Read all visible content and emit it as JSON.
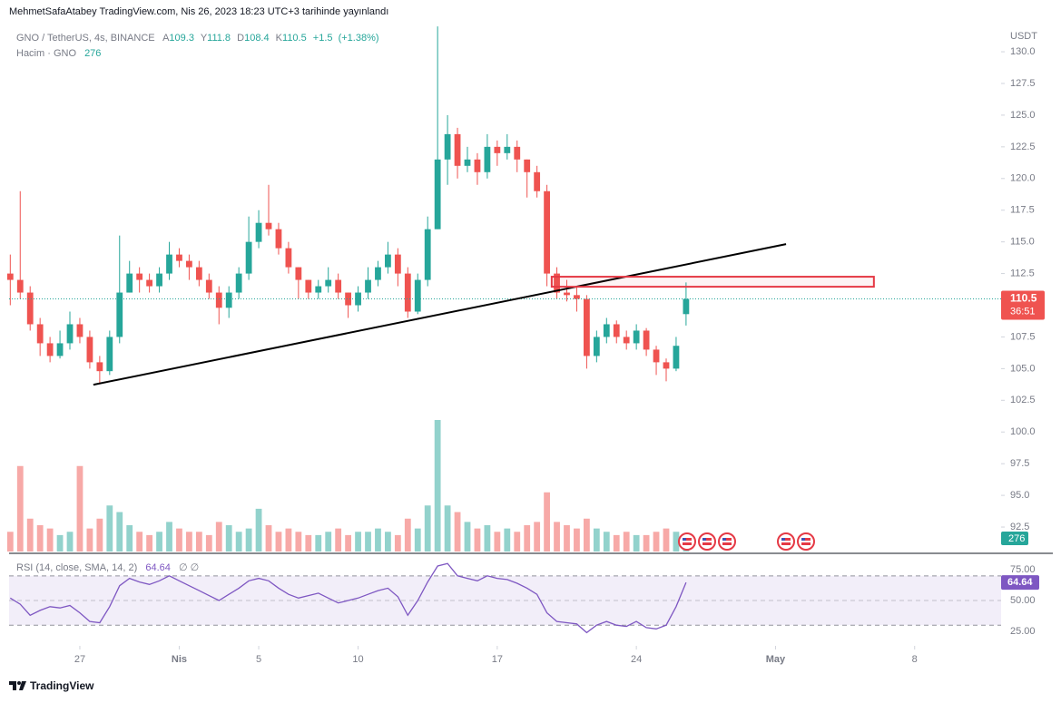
{
  "header": "MehmetSafaAtabey TradingView.com, Nis 26, 2023 18:23 UTC+3 tarihinde yayınlandı",
  "footer": "TradingView",
  "chart_data": {
    "type": "candlestick",
    "symbol": "GNO / TetherUS, 4s, BINANCE",
    "ohlc_keys": [
      "A",
      "Y",
      "D",
      "K"
    ],
    "change": {
      "value": 1.5,
      "label": "+1.5"
    },
    "change_pct": {
      "value": 1.38,
      "label": "(+1.38%)"
    },
    "currency": "USDT",
    "countdown": "36:51",
    "up_color": "#26a69a",
    "down_color": "#ef5350",
    "x": [
      23.5,
      24,
      24.5,
      25,
      25.5,
      26,
      26.5,
      27,
      27.5,
      28,
      28.5,
      29,
      29.5,
      30,
      30.5,
      31,
      31.5,
      32,
      32.5,
      33,
      33.5,
      34,
      34.5,
      35,
      35.5,
      36,
      36.5,
      37,
      37.5,
      38,
      38.5,
      39,
      39.5,
      40,
      40.5,
      41,
      41.5,
      42,
      42.5,
      43,
      43.5,
      44,
      44.5,
      45,
      45.5,
      46,
      46.5,
      47,
      47.5,
      48,
      48.5,
      49,
      49.5,
      50,
      50.5,
      51,
      51.5,
      52,
      52.5,
      53,
      53.5,
      54,
      54.5,
      55,
      55.5,
      56,
      56.5,
      57,
      57.5
    ],
    "ohlc": {
      "open": [
        112.5,
        112.0,
        111.0,
        108.5,
        107.0,
        106.0,
        107.0,
        108.5,
        107.5,
        105.5,
        104.8,
        107.5,
        111.0,
        112.5,
        112.0,
        111.5,
        112.5,
        114.0,
        113.5,
        113.0,
        112.0,
        111.0,
        109.8,
        111.0,
        112.5,
        115.0,
        116.5,
        116.0,
        114.5,
        113.0,
        112.0,
        111.0,
        111.5,
        112.0,
        111.0,
        110.0,
        111.0,
        112.0,
        113.0,
        114.0,
        112.5,
        109.5,
        112.0,
        116.0,
        121.5,
        123.5,
        121.0,
        121.5,
        120.5,
        122.5,
        122.0,
        122.5,
        121.5,
        120.5,
        119.0,
        112.5,
        111.0,
        110.8,
        110.5,
        106.0,
        107.5,
        108.5,
        107.5,
        107.0,
        108.0,
        106.5,
        105.5,
        105.0,
        109.3
      ],
      "high": [
        114.0,
        119.0,
        111.5,
        109.0,
        107.5,
        108.0,
        109.5,
        109.0,
        108.0,
        106.0,
        108.0,
        115.5,
        113.5,
        113.0,
        112.5,
        113.0,
        115.0,
        114.5,
        114.0,
        113.5,
        112.5,
        111.5,
        111.5,
        113.0,
        117.0,
        117.5,
        119.5,
        116.5,
        115.0,
        113.0,
        112.0,
        112.0,
        113.0,
        112.5,
        111.0,
        111.5,
        113.0,
        113.5,
        115.0,
        114.5,
        113.0,
        112.5,
        117.0,
        132.0,
        125.0,
        124.0,
        122.5,
        122.0,
        123.5,
        123.0,
        123.5,
        123.0,
        121.5,
        121.0,
        119.5,
        113.0,
        112.0,
        111.5,
        110.8,
        108.0,
        109.0,
        108.8,
        108.0,
        108.5,
        108.2,
        106.8,
        105.8,
        107.5,
        111.8
      ],
      "low": [
        110.0,
        110.5,
        108.0,
        106.0,
        105.5,
        105.8,
        106.5,
        107.0,
        105.0,
        103.8,
        104.5,
        107.0,
        111.0,
        111.0,
        111.0,
        111.0,
        112.0,
        113.0,
        112.0,
        111.5,
        110.5,
        108.5,
        109.0,
        110.5,
        112.0,
        114.5,
        115.5,
        114.0,
        112.5,
        110.5,
        110.5,
        110.5,
        111.0,
        110.5,
        109.0,
        109.5,
        110.5,
        111.5,
        112.5,
        111.5,
        109.0,
        109.3,
        111.5,
        116.0,
        119.5,
        120.0,
        120.5,
        119.5,
        120.0,
        121.0,
        121.5,
        120.5,
        118.5,
        118.5,
        111.5,
        110.5,
        110.3,
        109.5,
        105.0,
        105.5,
        107.0,
        107.0,
        106.5,
        106.5,
        106.0,
        104.5,
        104.0,
        104.8,
        108.4
      ],
      "close": [
        112.0,
        111.0,
        108.5,
        107.0,
        106.0,
        107.0,
        108.5,
        107.5,
        105.5,
        104.8,
        107.5,
        111.0,
        112.5,
        112.0,
        111.5,
        112.5,
        114.0,
        113.5,
        113.0,
        112.0,
        111.0,
        109.8,
        111.0,
        112.5,
        115.0,
        116.5,
        116.0,
        114.5,
        113.0,
        112.0,
        111.0,
        111.5,
        112.0,
        111.0,
        110.0,
        111.0,
        112.0,
        113.0,
        114.0,
        112.5,
        109.5,
        112.0,
        116.0,
        121.5,
        123.5,
        121.0,
        121.5,
        120.5,
        122.5,
        122.0,
        122.5,
        121.5,
        120.5,
        119.0,
        112.5,
        111.0,
        110.8,
        110.5,
        106.0,
        107.5,
        108.5,
        107.5,
        107.0,
        108.0,
        106.5,
        105.5,
        105.0,
        106.8,
        110.5
      ]
    },
    "volume": {
      "name": "Hacim · GNO",
      "vlim": [
        0,
        8000
      ],
      "values": [
        300,
        1300,
        500,
        400,
        350,
        250,
        300,
        1300,
        350,
        500,
        700,
        600,
        400,
        300,
        250,
        300,
        450,
        350,
        300,
        300,
        250,
        450,
        400,
        300,
        350,
        650,
        400,
        300,
        350,
        300,
        250,
        250,
        300,
        350,
        250,
        300,
        300,
        350,
        300,
        250,
        500,
        350,
        700,
        2000,
        700,
        600,
        450,
        350,
        400,
        300,
        350,
        300,
        400,
        450,
        900,
        450,
        400,
        350,
        500,
        350,
        300,
        250,
        300,
        250,
        250,
        300,
        350,
        300,
        276
      ]
    },
    "rsi": {
      "name": "RSI (14, close, SMA, 14, 2)",
      "extra": "∅ ∅",
      "color": "#7e57c2",
      "ylim": [
        14.7,
        86.8
      ],
      "yticks": [
        {
          "value": 75,
          "label": "75.00"
        },
        {
          "value": 50,
          "label": "50.00"
        },
        {
          "value": 25,
          "label": "25.00"
        }
      ],
      "levels": [
        70,
        50,
        30
      ],
      "values": [
        52,
        47,
        38,
        42,
        45,
        44,
        46,
        40,
        33,
        32,
        45,
        62,
        68,
        65,
        63,
        66,
        70,
        66,
        62,
        58,
        54,
        50,
        55,
        60,
        66,
        68,
        66,
        60,
        55,
        52,
        54,
        56,
        52,
        48,
        50,
        52,
        55,
        58,
        60,
        53,
        38,
        50,
        65,
        78,
        80,
        70,
        68,
        66,
        70,
        68,
        67,
        64,
        60,
        55,
        40,
        33,
        32,
        31,
        24,
        30,
        33,
        30,
        29,
        33,
        28,
        27,
        30,
        45,
        64.64
      ]
    },
    "xlim": [
      23.44,
      73.35
    ],
    "xticks": [
      27,
      {
        "value": 32,
        "label": "Nis"
      },
      {
        "value": 36,
        "label": "5"
      },
      {
        "value": 41,
        "label": "10"
      },
      {
        "value": 48,
        "label": "17"
      },
      {
        "value": 55,
        "label": "24"
      },
      {
        "value": 62,
        "label": "May"
      },
      {
        "value": 69,
        "label": "8"
      }
    ],
    "ylim": [
      90.57,
      132.08
    ],
    "yticks": [
      {
        "value": 130,
        "label": "130.0"
      },
      127.5,
      {
        "value": 125,
        "label": "125.0"
      },
      122.5,
      {
        "value": 120,
        "label": "120.0"
      },
      117.5,
      {
        "value": 115,
        "label": "115.0"
      },
      112.5,
      107.5,
      {
        "value": 105,
        "label": "105.0"
      },
      102.5,
      {
        "value": 100,
        "label": "100.0"
      },
      97.5,
      {
        "value": 95,
        "label": "95.0"
      },
      92.5
    ],
    "trendline": {
      "x": [
        27.68,
        62.53
      ],
      "y": [
        103.73,
        114.82
      ],
      "color": "#000000"
    },
    "zone": {
      "x": [
        50.74,
        66.95
      ],
      "y": [
        111.46,
        112.25
      ],
      "color": "#e53945"
    }
  }
}
